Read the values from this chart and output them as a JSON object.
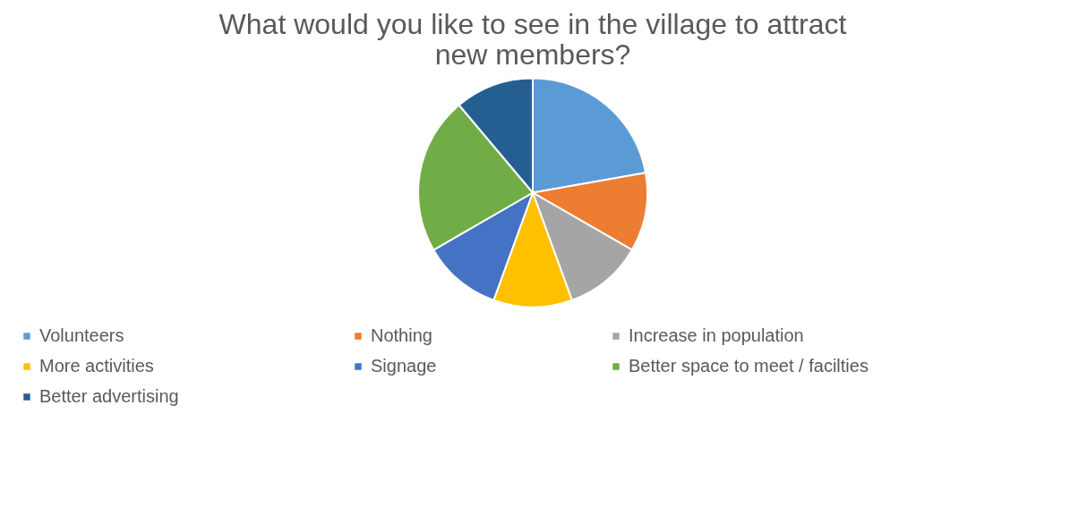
{
  "chart_data": {
    "type": "pie",
    "title": "What would you like to see in the village to attract new members?",
    "categories": [
      "Volunteers",
      "Nothing",
      "Increase in population",
      "More activities",
      "Signage",
      "Better space to meet / facilties",
      "Better advertising"
    ],
    "values": [
      22.22,
      11.11,
      11.11,
      11.11,
      11.11,
      22.22,
      11.12
    ],
    "colors": [
      "#5b9bd5",
      "#ed7d31",
      "#a5a5a5",
      "#ffc000",
      "#4472c4",
      "#70ad47",
      "#255e91"
    ],
    "legend": "bottom"
  }
}
